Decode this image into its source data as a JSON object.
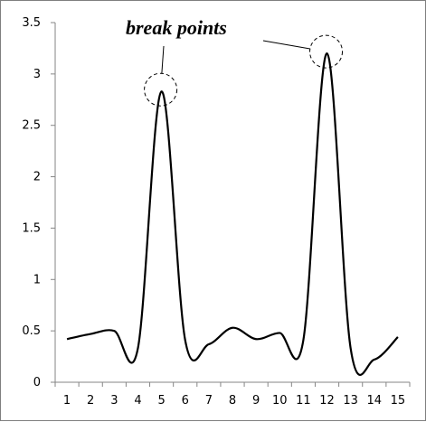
{
  "chart_data": {
    "type": "line",
    "title": "",
    "xlabel": "",
    "ylabel": "",
    "x": [
      1,
      2,
      3,
      4,
      5,
      6,
      7,
      8,
      9,
      10,
      11,
      12,
      13,
      14,
      15
    ],
    "series": [
      {
        "values": [
          0.42,
          0.47,
          0.5,
          0.33,
          2.83,
          0.41,
          0.37,
          0.53,
          0.42,
          0.48,
          0.41,
          3.2,
          0.33,
          0.22,
          0.44
        ],
        "color": "#000000"
      }
    ],
    "x_tick_labels": [
      "1",
      "2",
      "3",
      "4",
      "5",
      "6",
      "7",
      "8",
      "9",
      "10",
      "11",
      "12",
      "13",
      "14",
      "15"
    ],
    "y_tick_labels": [
      "0",
      "0.5",
      "1",
      "1.5",
      "2",
      "2.5",
      "3",
      "3.5"
    ],
    "ylim": [
      0,
      3.5
    ],
    "grid": false,
    "smooth": true,
    "annotation": {
      "text": "break points",
      "targets": [
        {
          "x": 5,
          "y": 2.83
        },
        {
          "x": 12,
          "y": 3.2
        }
      ],
      "marker": "dashed-circle"
    }
  }
}
